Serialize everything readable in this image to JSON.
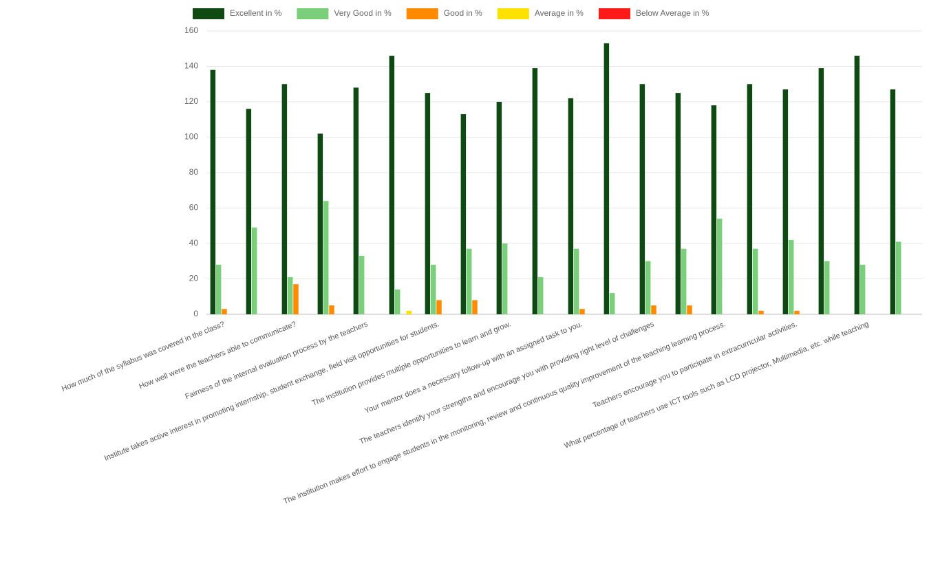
{
  "chart_data": {
    "type": "bar",
    "categories": [
      "How much of the syllabus was covered in the class?",
      null,
      "How well were the teachers able to communicate?",
      null,
      "Fairness of the internal evaluation process by the teachers",
      null,
      "Institute takes active interest in promoting internship, student exchange, field visit opportunities for students.",
      null,
      "The institution provides multiple opportunities to learn and grow.",
      null,
      "Your mentor does a necessary follow-up with an assigned task to you.",
      null,
      "The teachers identify your strengths and encourage you with providing right level of challenges",
      null,
      "The institution makes effort to engage students in the monitoring, review and continuous quality improvement of the teaching learning process.",
      null,
      "Teachers encourage you to participate in extracurricular activities.",
      null,
      "What percentage of teachers use ICT tools such as LCD projector, Multimedia, etc. while teaching",
      null
    ],
    "series": [
      {
        "name": "Excellent in %",
        "color": "#0f4a12",
        "values": [
          138,
          116,
          130,
          102,
          128,
          146,
          125,
          113,
          120,
          139,
          122,
          153,
          130,
          125,
          118,
          130,
          127,
          139,
          146,
          127
        ]
      },
      {
        "name": "Very Good in %",
        "color": "#7ccf7a",
        "values": [
          28,
          49,
          21,
          64,
          33,
          14,
          28,
          37,
          40,
          21,
          37,
          12,
          30,
          37,
          54,
          37,
          42,
          30,
          28,
          41
        ]
      },
      {
        "name": "Good in %",
        "color": "#ff8a00",
        "values": [
          3,
          0,
          17,
          5,
          0,
          0,
          8,
          8,
          0,
          0,
          3,
          0,
          5,
          5,
          0,
          2,
          2,
          0,
          0,
          0
        ]
      },
      {
        "name": "Average in %",
        "color": "#ffe100",
        "values": [
          0,
          0,
          0,
          0,
          0,
          2,
          0,
          0,
          0,
          0,
          0,
          0,
          0,
          0,
          0,
          0,
          0,
          0,
          0,
          0
        ]
      },
      {
        "name": "Below Average in %",
        "color": "#ff1a1a",
        "values": [
          0,
          0,
          0,
          0,
          0,
          0,
          0,
          0,
          0,
          0,
          0,
          0,
          0,
          0,
          0,
          0,
          0,
          0,
          0,
          0
        ]
      }
    ],
    "ylim": [
      0,
      160
    ],
    "yticks": [
      0,
      20,
      40,
      60,
      80,
      100,
      120,
      140,
      160
    ],
    "grid": true,
    "legend": "top"
  }
}
